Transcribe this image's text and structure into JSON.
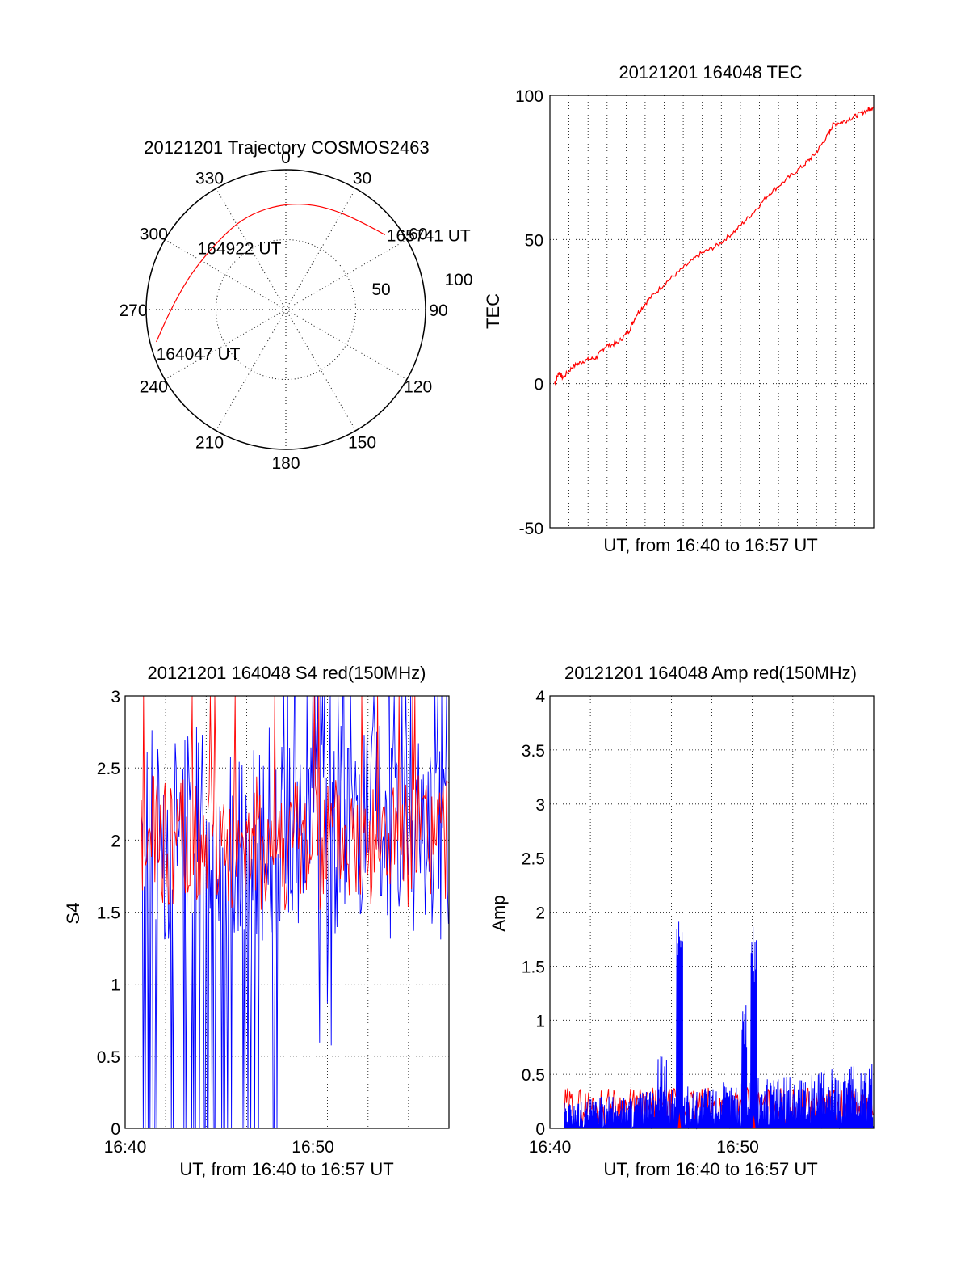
{
  "chart_data": [
    {
      "type": "polar",
      "title": "20121201 Trajectory COSMOS2463",
      "angle_labels": [
        "0",
        "30",
        "60",
        "90",
        "120",
        "150",
        "180",
        "210",
        "240",
        "270",
        "300",
        "330"
      ],
      "radial_labels": [
        "50",
        "100"
      ],
      "colors": {
        "trajectory": "#ff0000"
      },
      "trajectory": [
        {
          "azimuth": 256,
          "elevation": 4
        },
        {
          "azimuth": 262,
          "elevation": 10
        },
        {
          "azimuth": 270,
          "elevation": 16
        },
        {
          "azimuth": 282,
          "elevation": 22
        },
        {
          "azimuth": 295,
          "elevation": 26
        },
        {
          "azimuth": 312,
          "elevation": 28
        },
        {
          "azimuth": 330,
          "elevation": 26
        },
        {
          "azimuth": 345,
          "elevation": 24
        },
        {
          "azimuth": 0,
          "elevation": 22
        },
        {
          "azimuth": 15,
          "elevation": 20
        },
        {
          "azimuth": 30,
          "elevation": 18
        },
        {
          "azimuth": 45,
          "elevation": 14
        },
        {
          "azimuth": 53,
          "elevation": 10
        }
      ],
      "annotations": [
        {
          "text": "164047 UT",
          "azimuth": 256,
          "elevation": 4
        },
        {
          "text": "164922 UT",
          "azimuth": 330,
          "elevation": 26
        },
        {
          "text": "165741 UT",
          "azimuth": 53,
          "elevation": 10
        }
      ]
    },
    {
      "type": "line",
      "title": "20121201 164048 TEC",
      "xlabel": "UT, from 16:40 to 16:57 UT",
      "ylabel": "TEC",
      "ylim": [
        -50,
        100
      ],
      "yticks": [
        "100",
        "50",
        "0",
        "-50"
      ],
      "xlim_minutes": [
        16.67,
        16.95
      ],
      "grid": true,
      "colors": {
        "series": "#ff0000"
      },
      "series": [
        {
          "points": [
            [
              16.674,
              0
            ],
            [
              16.678,
              4
            ],
            [
              16.681,
              2
            ],
            [
              16.69,
              6
            ],
            [
              16.7,
              8
            ],
            [
              16.71,
              9
            ],
            [
              16.718,
              13
            ],
            [
              16.728,
              14
            ],
            [
              16.738,
              18
            ],
            [
              16.745,
              24
            ],
            [
              16.755,
              29
            ],
            [
              16.77,
              35
            ],
            [
              16.785,
              40
            ],
            [
              16.8,
              45
            ],
            [
              16.815,
              48
            ],
            [
              16.83,
              53
            ],
            [
              16.845,
              59
            ],
            [
              16.86,
              66
            ],
            [
              16.875,
              71
            ],
            [
              16.89,
              76
            ],
            [
              16.9,
              80
            ],
            [
              16.91,
              86
            ],
            [
              16.915,
              90
            ],
            [
              16.925,
              91
            ],
            [
              16.935,
              93
            ],
            [
              16.945,
              95
            ],
            [
              16.95,
              96
            ]
          ]
        }
      ]
    },
    {
      "type": "line",
      "title": "20121201 164048 S4 red(150MHz)",
      "xlabel": "UT, from 16:40 to 16:57 UT",
      "ylabel": "S4",
      "ylim": [
        0,
        3
      ],
      "yticks": [
        "0",
        "0.5",
        "1",
        "1.5",
        "2",
        "2.5",
        "3"
      ],
      "xticks": [
        "16:40",
        "16:50"
      ],
      "grid": true,
      "colors": {
        "blue": "#0000ff",
        "red": "#ff0000"
      },
      "series": [
        {
          "color": "blue",
          "range": [
            16.675,
            16.95
          ],
          "typical_low": 1.2,
          "typical_high": 2.8
        },
        {
          "color": "red",
          "range": [
            16.675,
            16.95
          ],
          "typical_low": 1.5,
          "typical_high": 2.4
        }
      ]
    },
    {
      "type": "line",
      "title": "20121201 164048 Amp red(150MHz)",
      "xlabel": "UT, from 16:40 to 16:57 UT",
      "ylabel": "Amp",
      "ylim": [
        0,
        4
      ],
      "yticks": [
        "0",
        "0.5",
        "1",
        "1.5",
        "2",
        "2.5",
        "3",
        "3.5",
        "4"
      ],
      "xticks": [
        "16:40",
        "16:50"
      ],
      "grid": true,
      "colors": {
        "blue": "#0000ff",
        "red": "#ff0000"
      },
      "series": [
        {
          "color": "blue",
          "range": [
            16.675,
            16.95
          ],
          "baseline": 0.2,
          "peaks": [
            [
              16.78,
              1.95
            ],
            [
              16.84,
              2.05
            ]
          ]
        },
        {
          "color": "red",
          "range": [
            16.675,
            16.95
          ],
          "baseline": 0.25
        }
      ]
    }
  ]
}
